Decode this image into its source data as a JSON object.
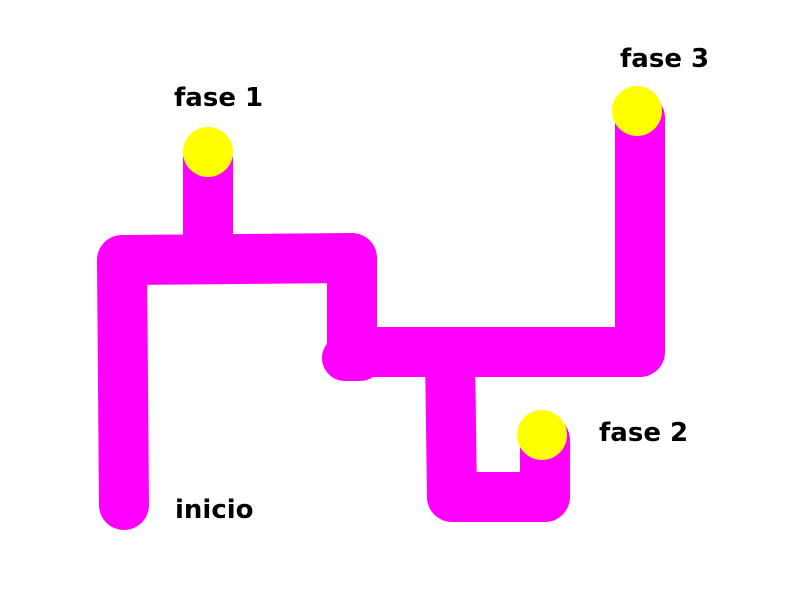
{
  "colors": {
    "path": "#ff00ff",
    "stage_marker": "#ffff00",
    "label_text": "#000000",
    "background": "#ffffff"
  },
  "labels": {
    "start": "inicio",
    "stage1": "fase 1",
    "stage2": "fase 2",
    "stage3": "fase 3"
  }
}
